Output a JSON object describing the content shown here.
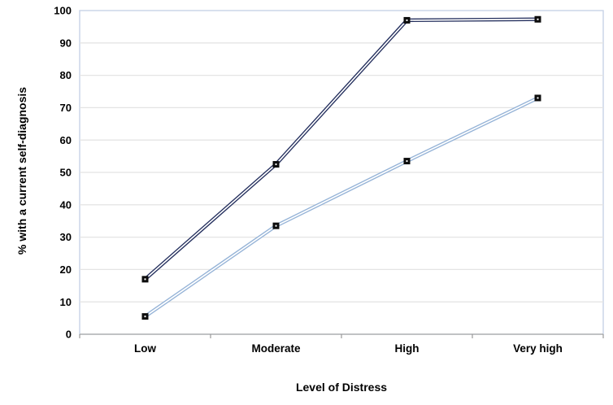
{
  "chart_data": {
    "type": "line",
    "title": "",
    "xlabel": "Level of Distress",
    "ylabel": "% with a current self-diagnosis",
    "categories": [
      "Low",
      "Moderate",
      "High",
      "Very high"
    ],
    "series": [
      {
        "name": "dark-navy-line",
        "color": "#25305e",
        "values": [
          17,
          52.5,
          97,
          97.3
        ]
      },
      {
        "name": "light-blue-line",
        "color": "#95b3d7",
        "values": [
          5.5,
          33.5,
          53.5,
          73
        ]
      }
    ],
    "ylim": [
      0,
      100
    ],
    "y_tick_labels": [
      "0",
      "10",
      "20",
      "30",
      "40",
      "50",
      "60",
      "70",
      "80",
      "90",
      "100"
    ],
    "grid": true,
    "legend_position": "none",
    "marker": "black-square-with-white-center-dot"
  },
  "styles": {
    "background": "#ffffff",
    "plot_border_color": "#c7d3e6",
    "gridline_color": "#e4e4e4",
    "axis_line_color": "#b3b3b3",
    "tick_color": "#999999",
    "marker_color": "#0d0d0d",
    "marker_dot_color": "#ffffff",
    "line_inner_color": "#ffffff",
    "text_color": "#000000"
  }
}
